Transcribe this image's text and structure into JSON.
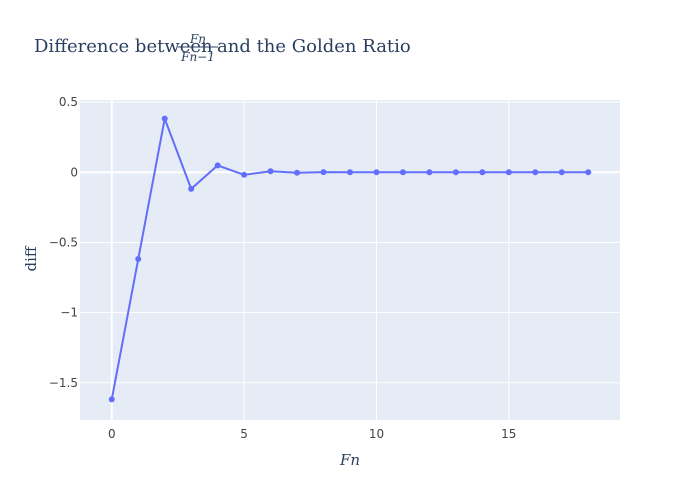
{
  "chart_data": {
    "type": "line",
    "title_prefix": "Difference between",
    "title_fraction": {
      "numerator": "Fn",
      "denominator": "Fn−1"
    },
    "title_suffix": "and the Golden Ratio",
    "xlabel": "Fn",
    "ylabel": "diff",
    "x": [
      0,
      1,
      2,
      3,
      4,
      5,
      6,
      7,
      8,
      9,
      10,
      11,
      12,
      13,
      14,
      15,
      16,
      17,
      18
    ],
    "y": [
      -1.618,
      -0.618,
      0.382,
      -0.118,
      0.049,
      -0.018,
      0.007,
      -0.003,
      0.001,
      0.0,
      0.0,
      0.0,
      0.0,
      0.0,
      0.0,
      0.0,
      0.0,
      0.0,
      0.0
    ],
    "xlim": [
      -1.2,
      19.2
    ],
    "ylim": [
      -1.765,
      0.515
    ],
    "xticks": [
      0,
      5,
      10,
      15
    ],
    "yticks": [
      0.5,
      0,
      -0.5,
      -1,
      -1.5
    ],
    "ytick_labels": [
      "0.5",
      "0",
      "−0.5",
      "−1",
      "−1.5"
    ],
    "xtick_labels": [
      "0",
      "5",
      "10",
      "15"
    ],
    "grid": true,
    "colors": {
      "line": "#636efa",
      "plot_bg": "#e5ecf6",
      "grid": "#ffffff",
      "text": "#2a3f5f"
    }
  }
}
